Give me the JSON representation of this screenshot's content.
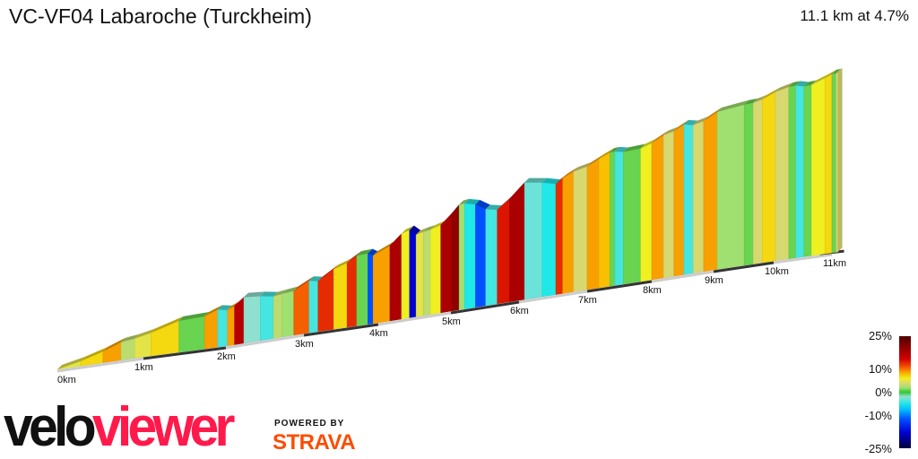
{
  "header": {
    "title": "VC-VF04 Labaroche (Turckheim)",
    "summary": "11.1 km at 4.7%"
  },
  "legend": {
    "labels": [
      "25%",
      "10%",
      "0%",
      "-10%",
      "-25%"
    ],
    "colors": {
      "-25": "#00003c",
      "-18": "#0000d0",
      "-12": "#0050ff",
      "-8": "#00b8ff",
      "-5": "#20e8e8",
      "-2": "#90e0d0",
      "0": "#30c830",
      "2": "#a0e070",
      "4": "#d8d870",
      "6": "#f0f020",
      "8": "#f8c000",
      "10": "#f88000",
      "12": "#f04000",
      "15": "#d00000",
      "20": "#900000",
      "25": "#500000"
    }
  },
  "branding": {
    "logo_part1": "velo",
    "logo_part2": "viewer",
    "powered_by": "POWERED BY",
    "strava": "STRAVA"
  },
  "chart_data": {
    "type": "area",
    "title": "VC-VF04 Labaroche (Turckheim)",
    "distance_km": 11.1,
    "average_gradient_pct": 4.7,
    "x_ticks": [
      "0km",
      "1km",
      "2km",
      "3km",
      "4km",
      "5km",
      "6km",
      "7km",
      "8km",
      "9km",
      "10km",
      "11km"
    ],
    "color_scale_pct": [
      -25,
      25
    ],
    "segments": [
      [
        0,
        0.27,
        5
      ],
      [
        0.27,
        0.53,
        7
      ],
      [
        0.53,
        0.74,
        9
      ],
      [
        0.74,
        0.9,
        3
      ],
      [
        0.9,
        1.09,
        5
      ],
      [
        1.09,
        1.43,
        7
      ],
      [
        1.43,
        1.74,
        1
      ],
      [
        1.74,
        1.9,
        9
      ],
      [
        1.9,
        2.02,
        -4
      ],
      [
        2.02,
        2.11,
        9
      ],
      [
        2.11,
        2.23,
        17
      ],
      [
        2.23,
        2.44,
        -2
      ],
      [
        2.44,
        2.61,
        -4
      ],
      [
        2.61,
        2.72,
        3
      ],
      [
        2.72,
        2.87,
        2
      ],
      [
        2.87,
        3.07,
        11
      ],
      [
        3.07,
        3.19,
        -4
      ],
      [
        3.19,
        3.4,
        13
      ],
      [
        3.4,
        3.58,
        7
      ],
      [
        3.58,
        3.71,
        13
      ],
      [
        3.71,
        3.86,
        1
      ],
      [
        3.86,
        3.93,
        -12
      ],
      [
        3.93,
        4.16,
        9
      ],
      [
        4.16,
        4.32,
        18
      ],
      [
        4.32,
        4.43,
        6
      ],
      [
        4.43,
        4.52,
        -18
      ],
      [
        4.52,
        4.62,
        5
      ],
      [
        4.62,
        4.72,
        3
      ],
      [
        4.72,
        4.86,
        6
      ],
      [
        4.86,
        5.01,
        18
      ],
      [
        5.01,
        5.12,
        20
      ],
      [
        5.12,
        5.2,
        2
      ],
      [
        5.2,
        5.36,
        -5
      ],
      [
        5.36,
        5.51,
        -12
      ],
      [
        5.51,
        5.68,
        -4
      ],
      [
        5.68,
        5.86,
        14
      ],
      [
        5.86,
        6.08,
        18
      ],
      [
        6.08,
        6.34,
        -3
      ],
      [
        6.34,
        6.54,
        -5
      ],
      [
        6.54,
        6.64,
        13
      ],
      [
        6.64,
        6.8,
        9
      ],
      [
        6.8,
        7.0,
        4
      ],
      [
        7.0,
        7.18,
        9
      ],
      [
        7.18,
        7.35,
        8
      ],
      [
        7.35,
        7.43,
        1
      ],
      [
        7.43,
        7.56,
        -4
      ],
      [
        7.56,
        7.83,
        1
      ],
      [
        7.83,
        8.0,
        6
      ],
      [
        8.0,
        8.19,
        9
      ],
      [
        8.19,
        8.36,
        4
      ],
      [
        8.36,
        8.52,
        9
      ],
      [
        8.52,
        8.67,
        -4
      ],
      [
        8.67,
        8.84,
        4
      ],
      [
        8.84,
        9.06,
        9
      ],
      [
        9.06,
        9.51,
        2
      ],
      [
        9.51,
        9.66,
        1
      ],
      [
        9.66,
        9.81,
        4
      ],
      [
        9.81,
        10.03,
        7
      ],
      [
        10.03,
        10.26,
        4
      ],
      [
        10.26,
        10.38,
        1
      ],
      [
        10.38,
        10.52,
        -4
      ],
      [
        10.52,
        10.65,
        1
      ],
      [
        10.65,
        10.88,
        6
      ],
      [
        10.88,
        11.0,
        7
      ],
      [
        11.0,
        11.07,
        1
      ],
      [
        11.07,
        11.1,
        4
      ]
    ],
    "segment_fields": [
      "start_km",
      "end_km",
      "gradient_pct"
    ]
  }
}
